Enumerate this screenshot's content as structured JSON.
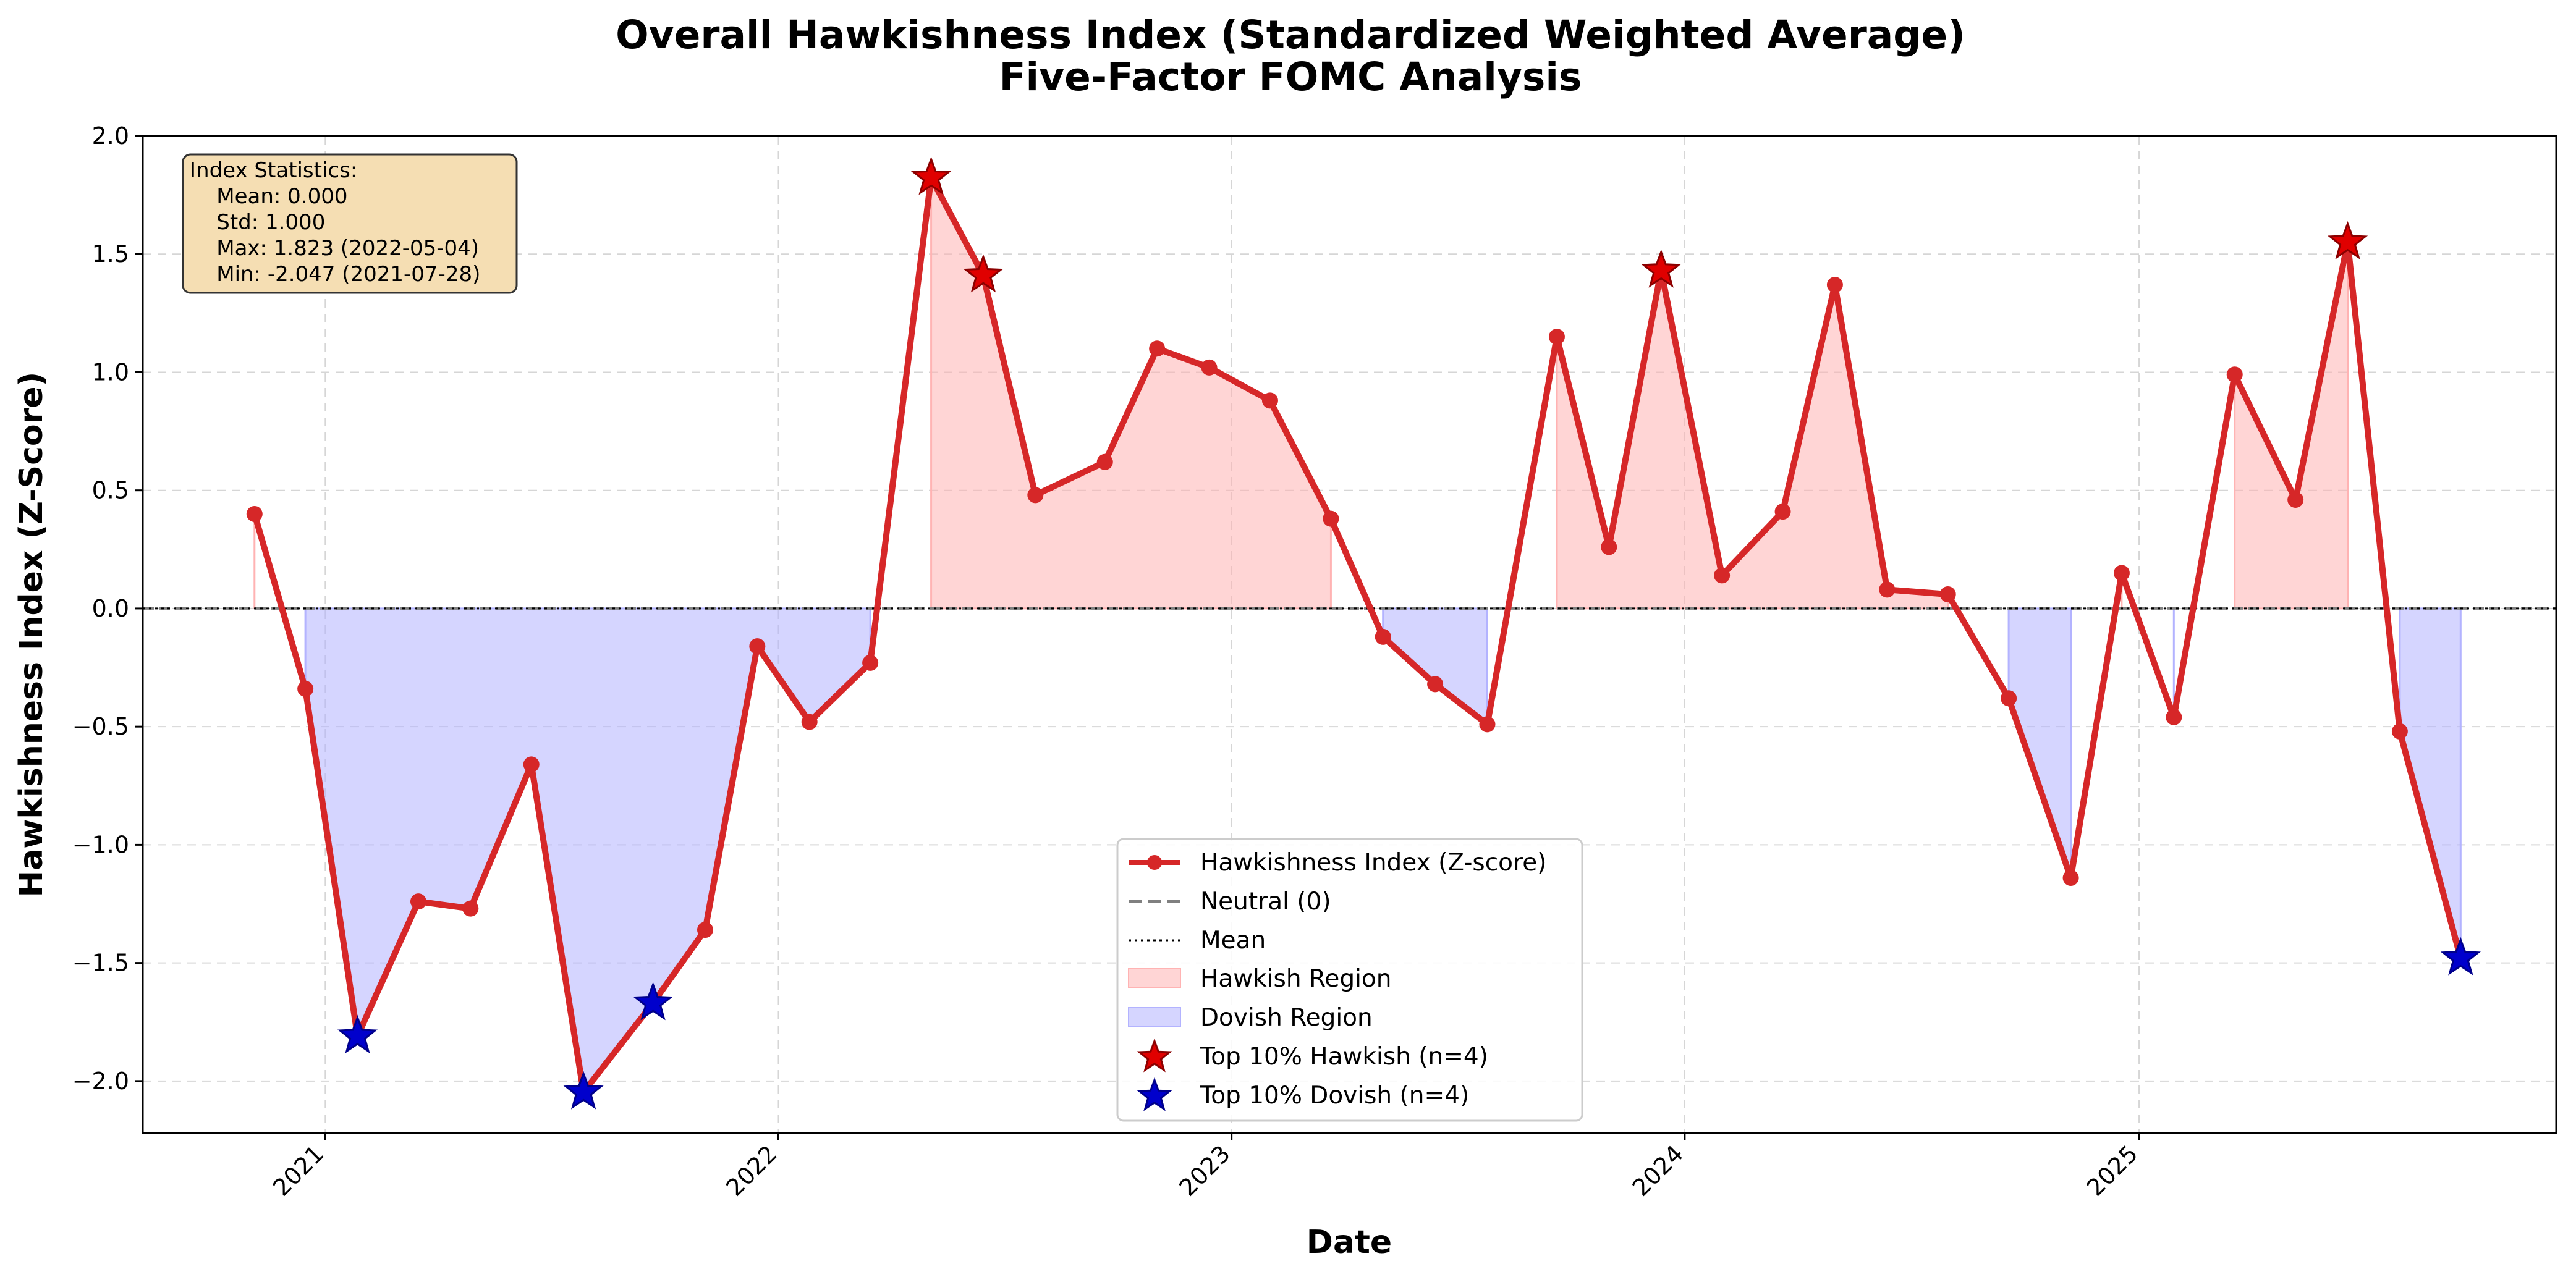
{
  "chart_data": {
    "type": "line",
    "title": [
      "Overall Hawkishness Index (Standardized Weighted Average)",
      "Five-Factor FOMC Analysis"
    ],
    "xlabel": "Date",
    "ylabel": "Hawkishness Index (Z-Score)",
    "xlim": [
      "2020-08-07",
      "2025-12-03"
    ],
    "ylim": [
      -2.22,
      2.0
    ],
    "x_ticks": [
      "2021-01-01",
      "2022-01-01",
      "2023-01-01",
      "2024-01-01",
      "2025-01-01"
    ],
    "x_tick_labels": [
      "2021",
      "2022",
      "2023",
      "2024",
      "2025"
    ],
    "y_ticks": [
      2.0,
      1.5,
      1.0,
      0.5,
      0.0,
      -0.5,
      -1.0,
      -1.5,
      -2.0
    ],
    "y_tick_labels": [
      "2.0",
      "1.5",
      "1.0",
      "0.5",
      "0.0",
      "−0.5",
      "−1.0",
      "−1.5",
      "−2.0"
    ],
    "grid": true,
    "colors": {
      "line": "#d62728",
      "neutral": "#808080",
      "mean": "#000000",
      "hawkish_fill": "#ffb3b3",
      "dovish_fill": "#b3b3ff",
      "hawkish_star": "#e00000",
      "dovish_star": "#0000cc",
      "stats_box_fill": "#f5deb3",
      "stats_box_stroke": "#333333"
    },
    "series": [
      {
        "name": "Hawkishness Index (Z-score)",
        "x": [
          "2020-11-05",
          "2020-12-16",
          "2021-01-27",
          "2021-03-17",
          "2021-04-28",
          "2021-06-16",
          "2021-07-28",
          "2021-09-22",
          "2021-11-03",
          "2021-12-15",
          "2022-01-26",
          "2022-03-16",
          "2022-05-04",
          "2022-06-15",
          "2022-07-27",
          "2022-09-21",
          "2022-11-02",
          "2022-12-14",
          "2023-02-01",
          "2023-03-22",
          "2023-05-03",
          "2023-06-14",
          "2023-07-26",
          "2023-09-20",
          "2023-11-01",
          "2023-12-13",
          "2024-01-31",
          "2024-03-20",
          "2024-05-01",
          "2024-06-12",
          "2024-07-31",
          "2024-09-18",
          "2024-11-07",
          "2024-12-18",
          "2025-01-29",
          "2025-03-19",
          "2025-05-07",
          "2025-06-18",
          "2025-07-30",
          "2025-09-17"
        ],
        "y": [
          0.4,
          -0.34,
          -1.81,
          -1.24,
          -1.27,
          -0.66,
          -2.047,
          -1.67,
          -1.36,
          -0.16,
          -0.48,
          -0.23,
          1.823,
          1.41,
          0.48,
          0.62,
          1.1,
          1.02,
          0.88,
          0.38,
          -0.12,
          -0.32,
          -0.49,
          1.15,
          0.26,
          1.43,
          0.14,
          0.41,
          1.37,
          0.08,
          0.06,
          -0.38,
          -1.14,
          0.15,
          -0.46,
          0.99,
          0.46,
          1.55,
          -0.52,
          -1.48
        ]
      }
    ],
    "hawkish_region_x": [
      [
        "2020-11-05",
        "2020-11-05"
      ],
      [
        "2022-05-04",
        "2023-03-22"
      ],
      [
        "2023-09-20",
        "2024-07-31"
      ],
      [
        "2025-03-19",
        "2025-06-18"
      ]
    ],
    "dovish_region_x": [
      [
        "2020-12-16",
        "2022-03-16"
      ],
      [
        "2023-05-03",
        "2023-07-26"
      ],
      [
        "2024-09-18",
        "2024-11-07"
      ],
      [
        "2025-07-30",
        "2025-09-17"
      ]
    ],
    "hawkish_top_dates": [
      "2022-05-04",
      "2022-06-15",
      "2023-12-13",
      "2025-06-18"
    ],
    "dovish_top_dates": [
      "2021-01-27",
      "2021-07-28",
      "2021-09-22",
      "2025-09-17"
    ],
    "legend": {
      "placement": "lower-center",
      "entries": [
        "Hawkishness Index (Z-score)",
        "Neutral (0)",
        "Mean",
        "Hawkish Region",
        "Dovish Region",
        "Top 10% Hawkish (n=4)",
        "Top 10% Dovish (n=4)"
      ]
    },
    "stats_box": {
      "placement": "top-left",
      "lines": [
        "Index Statistics:",
        "    Mean: 0.000",
        "    Std: 1.000",
        "    Max: 1.823 (2022-05-04)",
        "    Min: -2.047 (2021-07-28)"
      ]
    }
  }
}
